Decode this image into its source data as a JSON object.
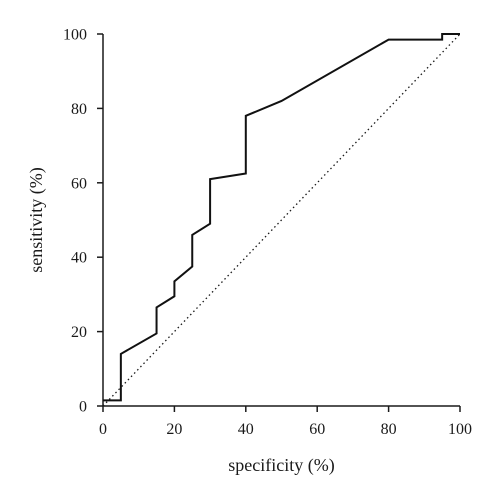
{
  "chart_data": {
    "type": "line",
    "xlabel": "specificity (%)",
    "ylabel": "sensitivity (%)",
    "xlim": [
      0,
      100
    ],
    "ylim": [
      0,
      100
    ],
    "xticks": [
      0,
      20,
      40,
      60,
      80,
      100
    ],
    "yticks": [
      0,
      20,
      40,
      60,
      80,
      100
    ],
    "grid": false,
    "legend": "none",
    "series": [
      {
        "style": "solid",
        "color": "#111111",
        "x": [
          0,
          5,
          5,
          15,
          15,
          20,
          20,
          25,
          25,
          30,
          30,
          40,
          40,
          50,
          80,
          95,
          95,
          100
        ],
        "y": [
          1.5,
          1.5,
          14,
          19.5,
          26.5,
          29.5,
          33.5,
          37.5,
          46,
          49,
          61,
          62.5,
          78,
          82,
          98.5,
          98.5,
          100,
          100
        ]
      },
      {
        "style": "dotted",
        "color": "#1a1a1a",
        "x": [
          0,
          100
        ],
        "y": [
          0,
          100
        ]
      }
    ]
  }
}
